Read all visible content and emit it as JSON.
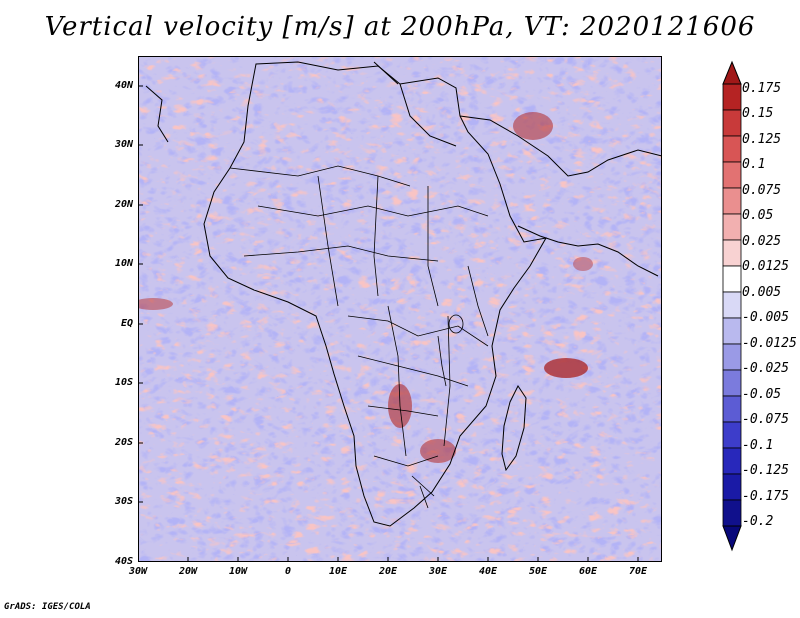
{
  "title": "Vertical velocity [m/s] at 200hPa, VT: 2020121606",
  "credit": "GrADS: IGES/COLA",
  "map": {
    "lat_range": [
      -40,
      45
    ],
    "lon_range": [
      -30,
      75
    ],
    "lat_ticks": [
      "40N",
      "30N",
      "20N",
      "10N",
      "EQ",
      "10S",
      "20S",
      "30S",
      "40S"
    ],
    "lon_ticks": [
      "30W",
      "20W",
      "10W",
      "0",
      "10E",
      "20E",
      "30E",
      "40E",
      "50E",
      "60E",
      "70E"
    ],
    "features": [
      {
        "name": "strong-upward-motion",
        "region": "southwest Indian Ocean near 55E 10S"
      },
      {
        "name": "strong-upward-motion",
        "region": "southern Africa near 30E 20S"
      },
      {
        "name": "strong-upward-motion",
        "region": "Middle East near 45E 30N"
      }
    ]
  },
  "colorbar": {
    "labels": [
      "0.175",
      "0.15",
      "0.125",
      "0.1",
      "0.075",
      "0.05",
      "0.025",
      "0.0125",
      "0.005",
      "-0.005",
      "-0.0125",
      "-0.025",
      "-0.05",
      "-0.075",
      "-0.1",
      "-0.125",
      "-0.175",
      "-0.2"
    ],
    "colors": [
      "#a01818",
      "#b52323",
      "#c83a3a",
      "#d85555",
      "#e27272",
      "#ea8f8f",
      "#f2b0b0",
      "#f8d2d2",
      "#ffffff",
      "#d9d9f6",
      "#b9b9ee",
      "#9a9ae6",
      "#7b7bdd",
      "#5c5cd4",
      "#3d3dca",
      "#2828bb",
      "#1a1aa6",
      "#10108c",
      "#08087a"
    ]
  }
}
